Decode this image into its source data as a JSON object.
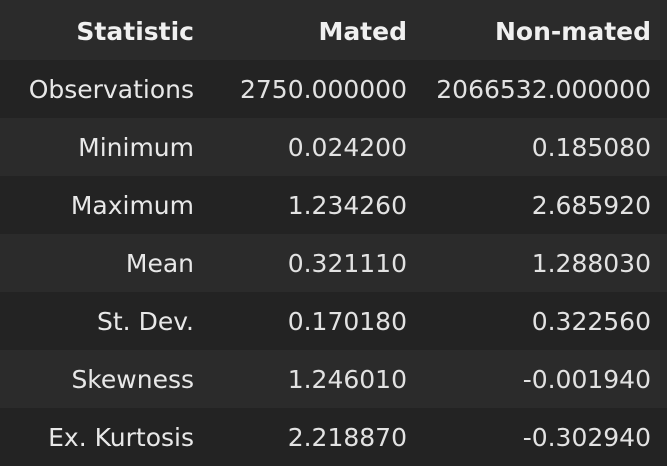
{
  "table": {
    "headers": [
      "Statistic",
      "Mated",
      "Non-mated"
    ],
    "rows": [
      [
        "Observations",
        "2750.000000",
        "2066532.000000"
      ],
      [
        "Minimum",
        "0.024200",
        "0.185080"
      ],
      [
        "Maximum",
        "1.234260",
        "2.685920"
      ],
      [
        "Mean",
        "0.321110",
        "1.288030"
      ],
      [
        "St. Dev.",
        "0.170180",
        "0.322560"
      ],
      [
        "Skewness",
        "1.246010",
        "-0.001940"
      ],
      [
        "Ex. Kurtosis",
        "2.218870",
        "-0.302940"
      ]
    ]
  }
}
